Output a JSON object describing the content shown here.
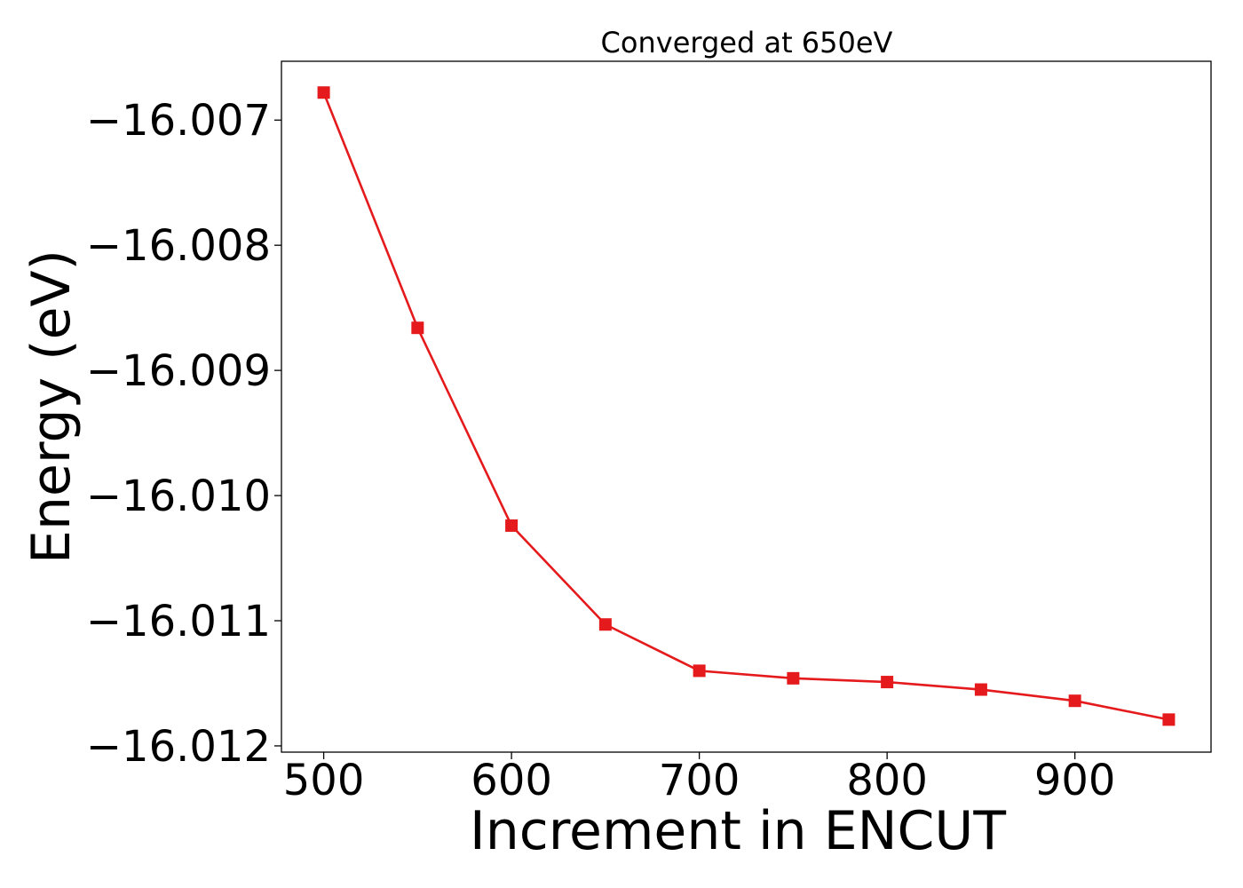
{
  "chart_data": {
    "type": "line",
    "title": "Converged at 650eV",
    "xlabel": "Increment in ENCUT",
    "ylabel": "Energy (eV)",
    "x": [
      500,
      550,
      600,
      650,
      700,
      750,
      800,
      850,
      900,
      950
    ],
    "series": [
      {
        "values": [
          -16.00678,
          -16.00866,
          -16.01024,
          -16.01103,
          -16.0114,
          -16.01146,
          -16.01149,
          -16.01155,
          -16.01164,
          -16.01179
        ],
        "color": "#e41a1c",
        "marker": "square"
      }
    ],
    "xlim": [
      477.5,
      972.5
    ],
    "ylim": [
      -16.01205,
      -16.00653
    ],
    "xticks": [
      500,
      600,
      700,
      800,
      900
    ],
    "xtick_labels": [
      "500",
      "600",
      "700",
      "800",
      "900"
    ],
    "yticks": [
      -16.007,
      -16.008,
      -16.009,
      -16.01,
      -16.011,
      -16.012
    ],
    "ytick_labels": [
      "−16.007",
      "−16.008",
      "−16.009",
      "−16.010",
      "−16.011",
      "−16.012"
    ],
    "grid": false,
    "legend": "none"
  }
}
